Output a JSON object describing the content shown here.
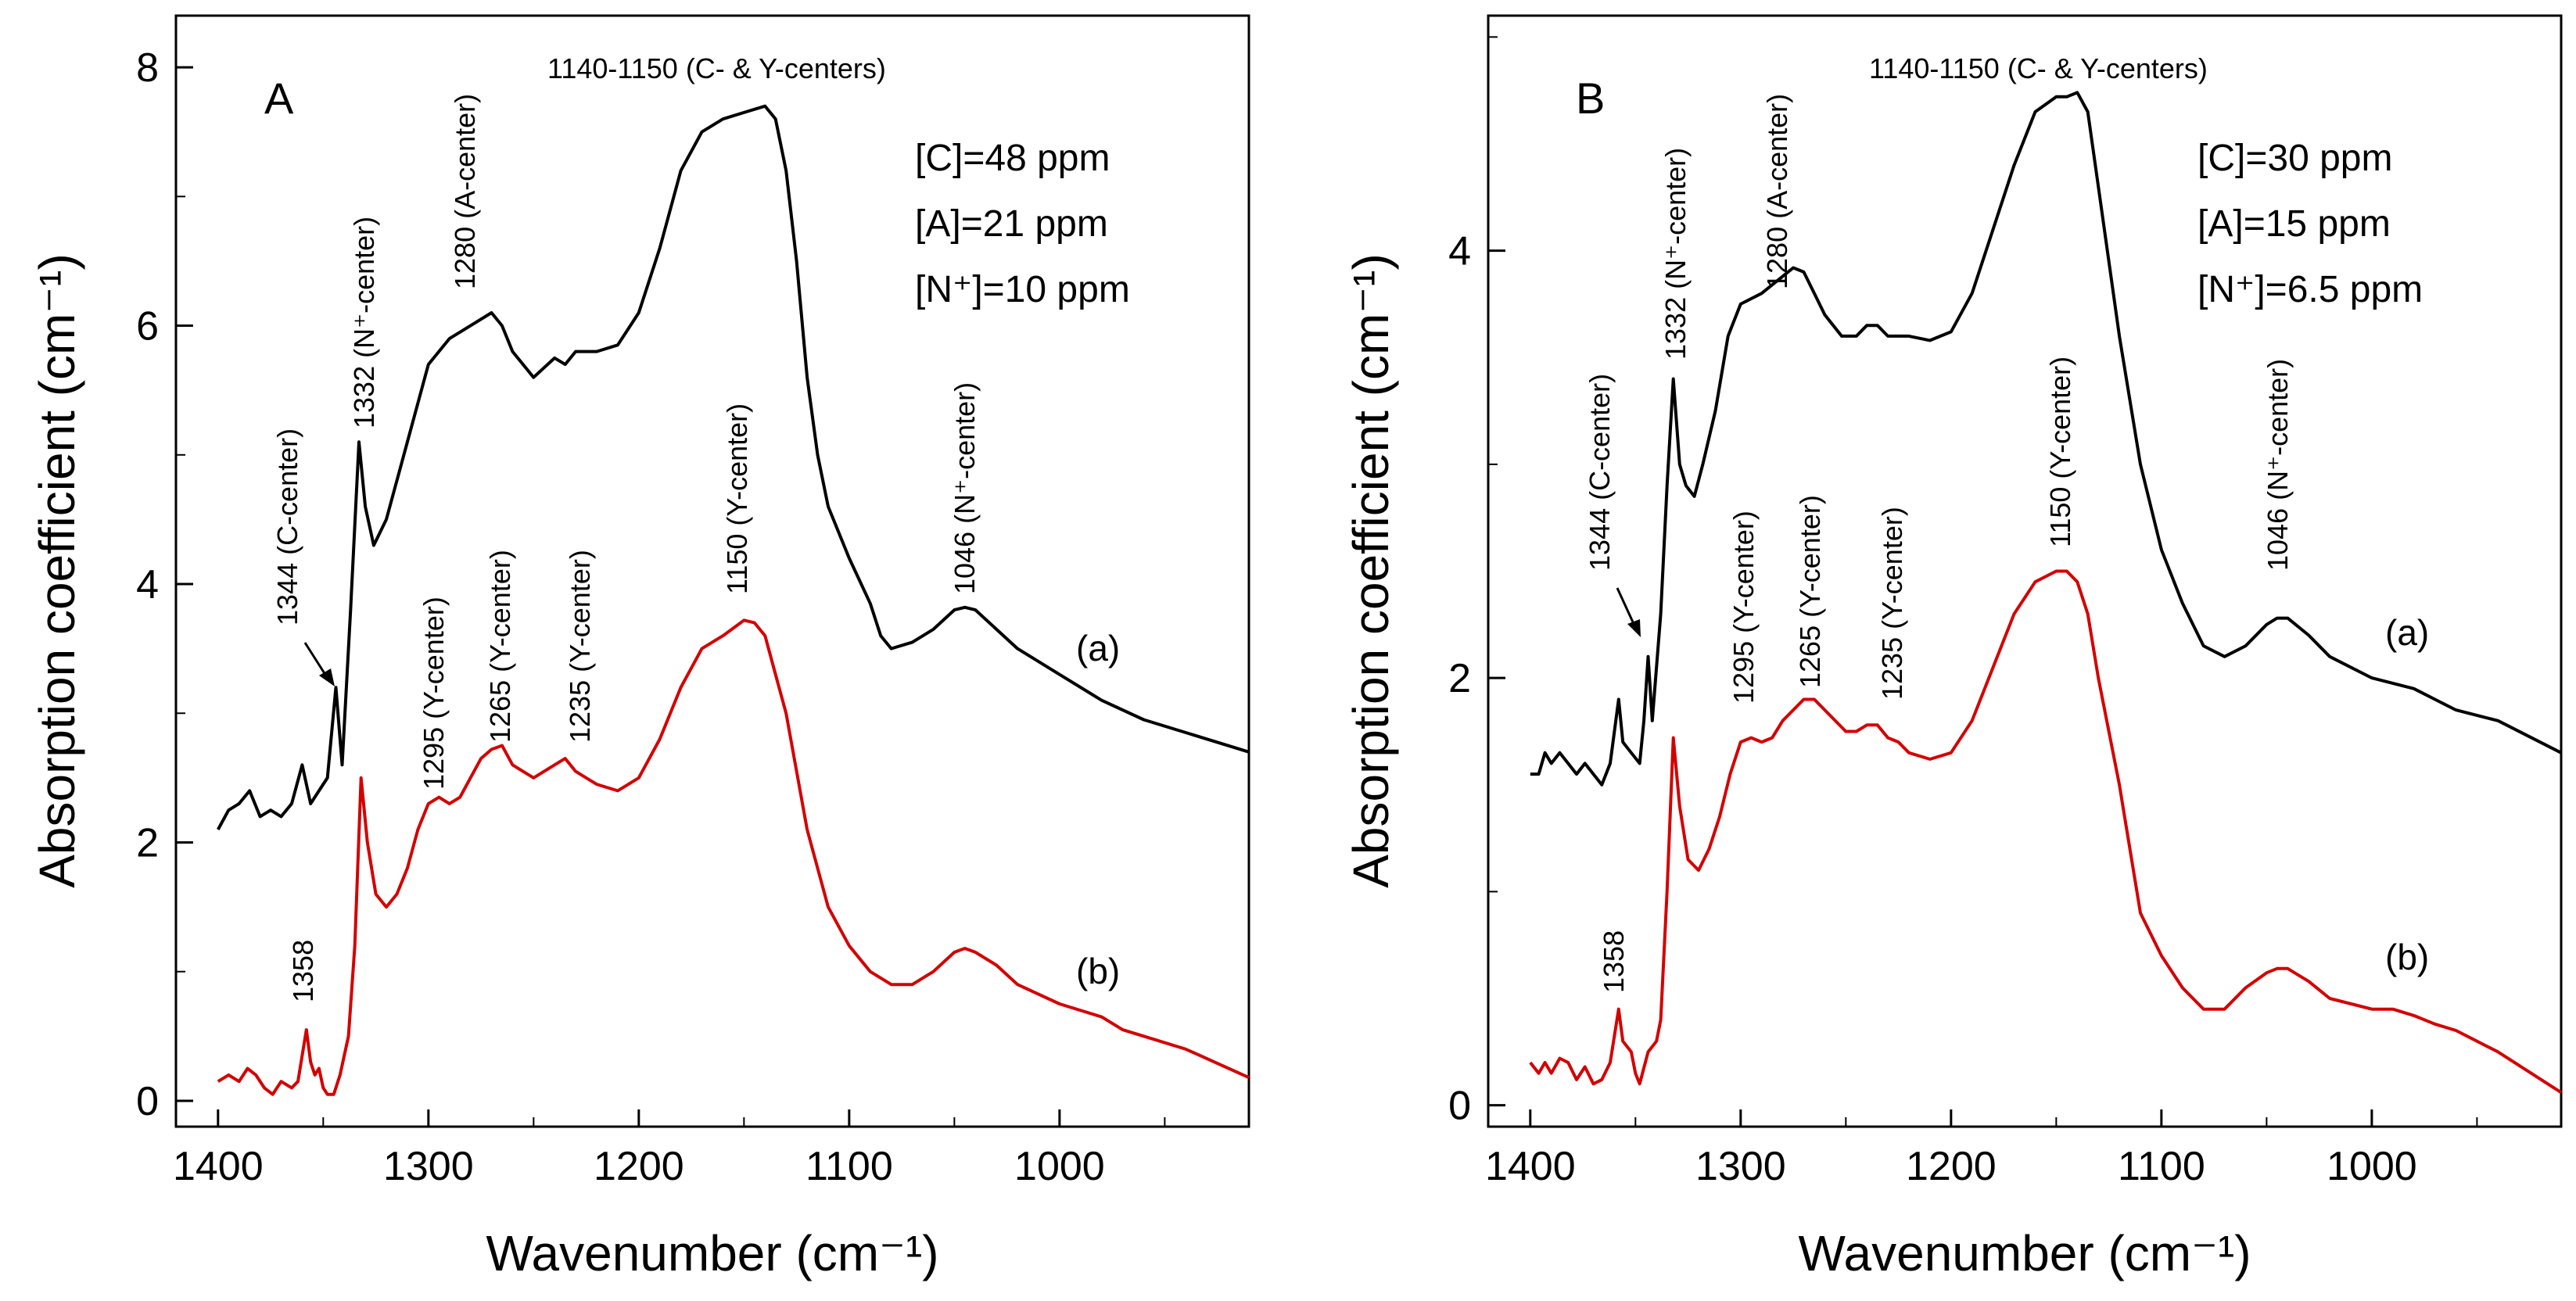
{
  "chart_data": [
    {
      "type": "line",
      "panel_label": "A",
      "xlabel": "Wavenumber (cm⁻¹)",
      "ylabel": "Absorption coefficient (cm⁻¹)",
      "xlim": [
        1420,
        910
      ],
      "ylim": [
        -0.2,
        8.4
      ],
      "xticks": [
        1400,
        1300,
        1200,
        1100,
        1000
      ],
      "yticks": [
        0,
        2,
        4,
        6,
        8
      ],
      "concentrations": [
        "[C]=48 ppm",
        "[A]=21 ppm",
        "[N⁺]=10 ppm"
      ],
      "series": [
        {
          "name": "(a)",
          "color": "#000000",
          "x": [
            1400,
            1395,
            1390,
            1385,
            1380,
            1375,
            1370,
            1365,
            1360,
            1358,
            1356,
            1352,
            1348,
            1344,
            1341,
            1337,
            1333,
            1330,
            1326,
            1320,
            1310,
            1300,
            1290,
            1280,
            1270,
            1265,
            1260,
            1250,
            1240,
            1235,
            1230,
            1220,
            1210,
            1200,
            1190,
            1180,
            1170,
            1160,
            1150,
            1140,
            1135,
            1130,
            1125,
            1120,
            1115,
            1110,
            1100,
            1090,
            1085,
            1080,
            1070,
            1060,
            1050,
            1045,
            1040,
            1030,
            1020,
            1000,
            980,
            960,
            940,
            910
          ],
          "y": [
            2.1,
            2.25,
            2.3,
            2.4,
            2.2,
            2.25,
            2.2,
            2.3,
            2.6,
            2.45,
            2.3,
            2.4,
            2.5,
            3.2,
            2.6,
            3.8,
            5.1,
            4.6,
            4.3,
            4.5,
            5.1,
            5.7,
            5.9,
            6.0,
            6.1,
            6.0,
            5.8,
            5.6,
            5.75,
            5.7,
            5.8,
            5.8,
            5.85,
            6.1,
            6.6,
            7.2,
            7.5,
            7.6,
            7.65,
            7.7,
            7.6,
            7.2,
            6.5,
            5.6,
            5.0,
            4.6,
            4.2,
            3.85,
            3.6,
            3.5,
            3.55,
            3.65,
            3.8,
            3.82,
            3.8,
            3.65,
            3.5,
            3.3,
            3.1,
            2.95,
            2.85,
            2.7
          ]
        },
        {
          "name": "(b)",
          "color": "#d40000",
          "x": [
            1400,
            1395,
            1390,
            1386,
            1382,
            1378,
            1374,
            1370,
            1365,
            1362,
            1358,
            1356,
            1354,
            1352,
            1350,
            1348,
            1345,
            1342,
            1338,
            1335,
            1332,
            1329,
            1325,
            1320,
            1315,
            1310,
            1305,
            1300,
            1295,
            1290,
            1285,
            1280,
            1275,
            1270,
            1265,
            1260,
            1250,
            1245,
            1240,
            1235,
            1230,
            1225,
            1220,
            1210,
            1200,
            1190,
            1180,
            1170,
            1160,
            1150,
            1145,
            1140,
            1135,
            1130,
            1120,
            1110,
            1100,
            1090,
            1080,
            1070,
            1060,
            1050,
            1045,
            1040,
            1030,
            1020,
            1000,
            980,
            970,
            960,
            940,
            910
          ],
          "y": [
            0.15,
            0.2,
            0.15,
            0.25,
            0.2,
            0.1,
            0.05,
            0.15,
            0.1,
            0.15,
            0.55,
            0.3,
            0.2,
            0.25,
            0.1,
            0.05,
            0.05,
            0.2,
            0.5,
            1.2,
            2.5,
            2.0,
            1.6,
            1.5,
            1.6,
            1.8,
            2.1,
            2.3,
            2.35,
            2.3,
            2.35,
            2.5,
            2.65,
            2.72,
            2.75,
            2.6,
            2.5,
            2.55,
            2.6,
            2.65,
            2.55,
            2.5,
            2.45,
            2.4,
            2.5,
            2.8,
            3.2,
            3.5,
            3.6,
            3.72,
            3.7,
            3.6,
            3.3,
            3.0,
            2.1,
            1.5,
            1.2,
            1.0,
            0.9,
            0.9,
            1.0,
            1.15,
            1.18,
            1.15,
            1.05,
            0.9,
            0.75,
            0.65,
            0.55,
            0.5,
            0.4,
            0.18
          ]
        }
      ],
      "annotations": [
        {
          "text": "1140-1150 (C- & Y-centers)",
          "orient": "h"
        },
        {
          "text": "1280 (A-center)",
          "orient": "v"
        },
        {
          "text": "1332 (N⁺-center)",
          "orient": "v"
        },
        {
          "text": "1344 (C-center)",
          "orient": "v"
        },
        {
          "text": "1046 (N⁺-center)",
          "orient": "v"
        },
        {
          "text": "1295 (Y-center)",
          "orient": "v"
        },
        {
          "text": "1265 (Y-center)",
          "orient": "v"
        },
        {
          "text": "1235 (Y-center)",
          "orient": "v"
        },
        {
          "text": "1150 (Y-center)",
          "orient": "v"
        },
        {
          "text": "1358",
          "orient": "v"
        }
      ]
    },
    {
      "type": "line",
      "panel_label": "B",
      "xlabel": "Wavenumber (cm⁻¹)",
      "ylabel": "Absorption coefficient (cm⁻¹)",
      "xlim": [
        1420,
        910
      ],
      "ylim": [
        -0.1,
        5.1
      ],
      "xticks": [
        1400,
        1300,
        1200,
        1100,
        1000
      ],
      "yticks": [
        0,
        2,
        4
      ],
      "concentrations": [
        "[C]=30 ppm",
        "[A]=15 ppm",
        "[N⁺]=6.5 ppm"
      ],
      "series": [
        {
          "name": "(a)",
          "color": "#000000",
          "x": [
            1400,
            1396,
            1393,
            1390,
            1386,
            1382,
            1378,
            1374,
            1370,
            1366,
            1362,
            1358,
            1356,
            1352,
            1348,
            1346,
            1344,
            1342,
            1338,
            1335,
            1332,
            1329,
            1326,
            1322,
            1318,
            1312,
            1306,
            1300,
            1290,
            1280,
            1275,
            1270,
            1265,
            1260,
            1252,
            1245,
            1240,
            1235,
            1230,
            1225,
            1220,
            1210,
            1200,
            1190,
            1180,
            1170,
            1160,
            1150,
            1145,
            1140,
            1135,
            1130,
            1120,
            1110,
            1100,
            1090,
            1085,
            1080,
            1070,
            1060,
            1050,
            1045,
            1040,
            1030,
            1020,
            1000,
            980,
            970,
            960,
            940,
            910
          ],
          "y": [
            1.55,
            1.55,
            1.65,
            1.6,
            1.65,
            1.6,
            1.55,
            1.6,
            1.55,
            1.5,
            1.6,
            1.9,
            1.7,
            1.65,
            1.6,
            1.8,
            2.1,
            1.8,
            2.3,
            2.9,
            3.4,
            3.0,
            2.9,
            2.85,
            3.0,
            3.25,
            3.6,
            3.75,
            3.8,
            3.88,
            3.92,
            3.9,
            3.8,
            3.7,
            3.6,
            3.6,
            3.65,
            3.65,
            3.6,
            3.6,
            3.6,
            3.58,
            3.62,
            3.8,
            4.1,
            4.4,
            4.65,
            4.72,
            4.72,
            4.74,
            4.65,
            4.3,
            3.6,
            3.0,
            2.6,
            2.35,
            2.25,
            2.15,
            2.1,
            2.15,
            2.25,
            2.28,
            2.28,
            2.2,
            2.1,
            2.0,
            1.95,
            1.9,
            1.85,
            1.8,
            1.65
          ]
        },
        {
          "name": "(b)",
          "color": "#d40000",
          "x": [
            1400,
            1396,
            1393,
            1390,
            1386,
            1382,
            1378,
            1374,
            1370,
            1366,
            1362,
            1358,
            1356,
            1352,
            1350,
            1348,
            1344,
            1340,
            1338,
            1335,
            1332,
            1329,
            1325,
            1320,
            1315,
            1310,
            1305,
            1300,
            1295,
            1290,
            1285,
            1280,
            1275,
            1270,
            1265,
            1260,
            1250,
            1245,
            1240,
            1235,
            1230,
            1225,
            1220,
            1210,
            1200,
            1190,
            1180,
            1170,
            1160,
            1150,
            1145,
            1140,
            1135,
            1130,
            1120,
            1110,
            1100,
            1090,
            1080,
            1070,
            1060,
            1050,
            1045,
            1040,
            1030,
            1020,
            1000,
            990,
            980,
            970,
            960,
            940,
            910
          ],
          "y": [
            0.2,
            0.15,
            0.2,
            0.15,
            0.22,
            0.2,
            0.12,
            0.18,
            0.1,
            0.12,
            0.2,
            0.45,
            0.3,
            0.25,
            0.15,
            0.1,
            0.25,
            0.3,
            0.4,
            1.0,
            1.72,
            1.4,
            1.15,
            1.1,
            1.2,
            1.35,
            1.55,
            1.7,
            1.72,
            1.7,
            1.72,
            1.8,
            1.85,
            1.9,
            1.9,
            1.85,
            1.75,
            1.75,
            1.78,
            1.78,
            1.72,
            1.7,
            1.65,
            1.62,
            1.65,
            1.8,
            2.05,
            2.3,
            2.45,
            2.5,
            2.5,
            2.45,
            2.3,
            2.0,
            1.5,
            0.9,
            0.7,
            0.55,
            0.45,
            0.45,
            0.55,
            0.62,
            0.64,
            0.64,
            0.58,
            0.5,
            0.45,
            0.45,
            0.42,
            0.38,
            0.35,
            0.25,
            0.06
          ]
        }
      ],
      "annotations": [
        {
          "text": "1140-1150 (C- & Y-centers)",
          "orient": "h"
        },
        {
          "text": "1280 (A-center)",
          "orient": "v"
        },
        {
          "text": "1332 (N⁺-center)",
          "orient": "v"
        },
        {
          "text": "1344 (C-center)",
          "orient": "v"
        },
        {
          "text": "1046 (N⁺-center)",
          "orient": "v"
        },
        {
          "text": "1295 (Y-center)",
          "orient": "v"
        },
        {
          "text": "1265 (Y-center)",
          "orient": "v"
        },
        {
          "text": "1235 (Y-center)",
          "orient": "v"
        },
        {
          "text": "1150 (Y-center)",
          "orient": "v"
        },
        {
          "text": "1358",
          "orient": "v"
        }
      ]
    }
  ]
}
